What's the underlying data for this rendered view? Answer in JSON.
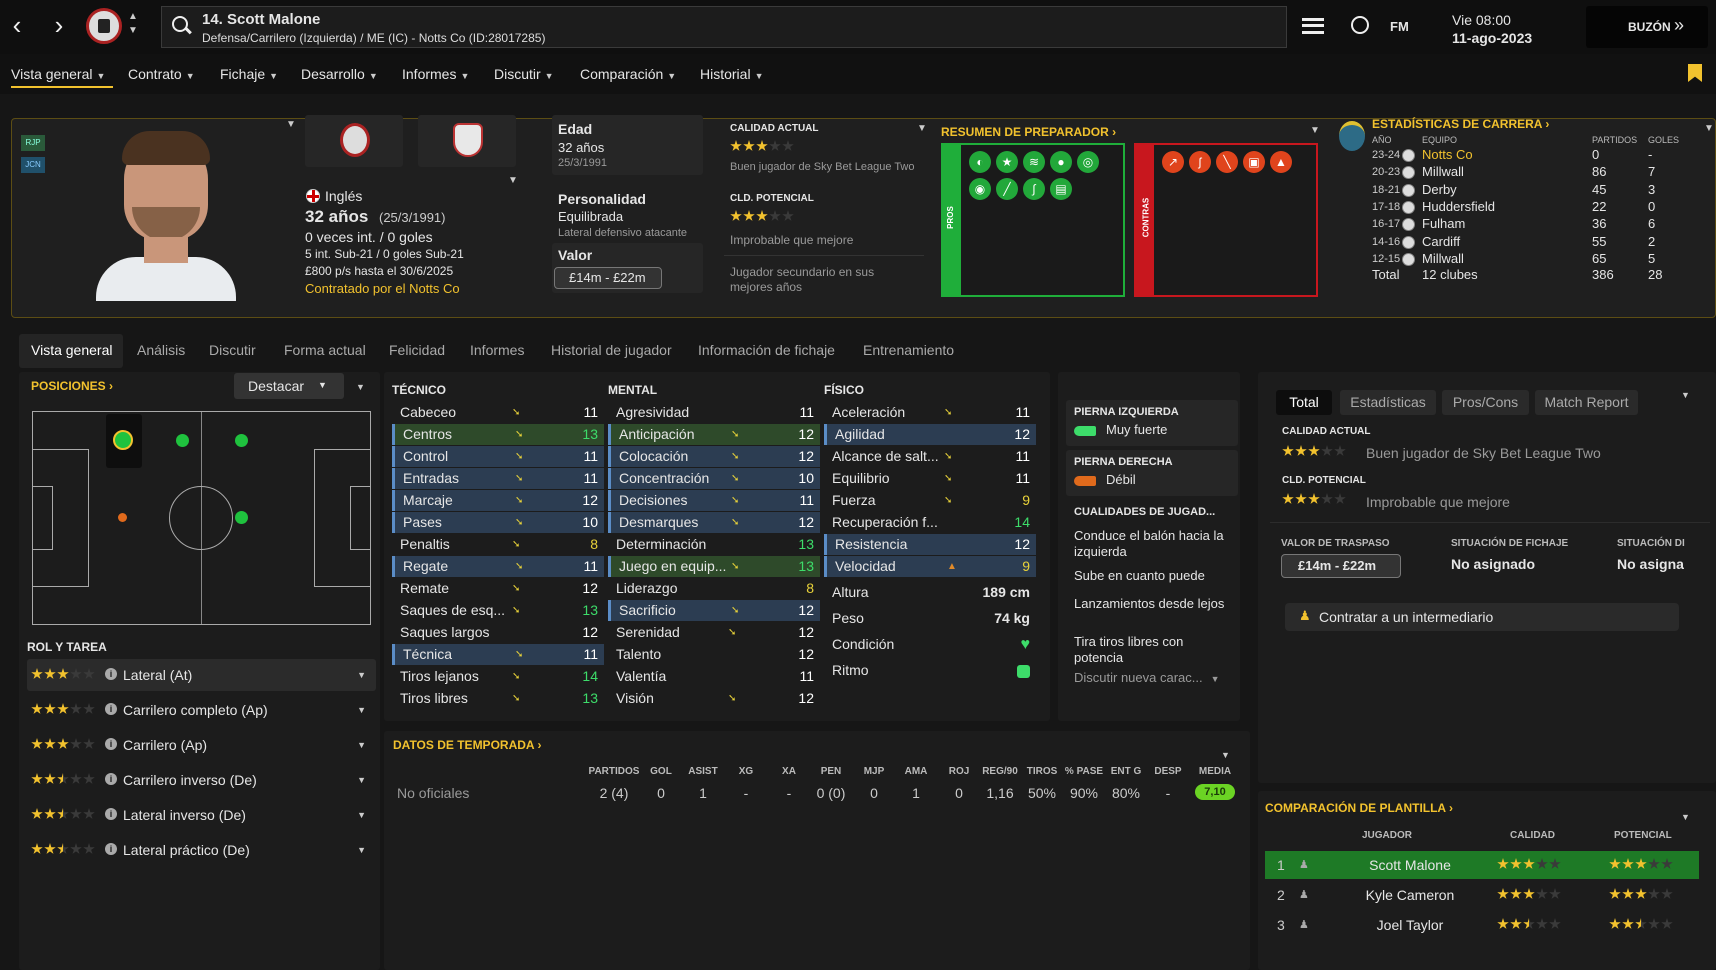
{
  "topbar": {
    "player_title": "14. Scott Malone",
    "player_subtitle": "Defensa/Carrilero (Izquierda) / ME (IC) - Notts Co (ID:28017285)",
    "fm_label": "FM",
    "date_day": "Vie 08:00",
    "date_full": "11-ago-2023",
    "inbox_label": "BUZÓN"
  },
  "menu": [
    "Vista general",
    "Contrato",
    "Fichaje",
    "Desarrollo",
    "Informes",
    "Discutir",
    "Comparación",
    "Historial"
  ],
  "profile": {
    "badge_rup": "RJP",
    "badge_jcn": "JCN",
    "nationality": "Inglés",
    "age_text": "32 años",
    "birth_text": "(25/3/1991)",
    "caps": "0 veces int. / 0 goles",
    "youth_caps": "5 int. Sub-21 / 0 goles Sub-21",
    "wage": "£800 p/s hasta el 30/6/2025",
    "signed": "Contratado por el Notts Co",
    "age_label": "Edad",
    "age_value": "32 años",
    "age_date": "25/3/1991",
    "personality_label": "Personalidad",
    "personality_value": "Equilibrada",
    "personality_sub": "Lateral defensivo atacante",
    "value_label": "Valor",
    "value_range": "£14m - £22m"
  },
  "ability": {
    "current_label": "CALIDAD ACTUAL",
    "current_stars": 3,
    "current_desc": "Buen jugador de Sky Bet League Two",
    "potential_label": "CLD. POTENCIAL",
    "potential_stars": 3,
    "potential_desc": "Improbable que mejore",
    "extra_desc": "Jugador secundario en sus mejores años"
  },
  "coach_summary": {
    "title": "RESUMEN DE PREPARADOR",
    "pros_label": "PROS",
    "cons_label": "CONTRAS"
  },
  "career": {
    "title": "ESTADÍSTICAS DE CARRERA",
    "col_year": "AÑO",
    "col_team": "EQUIPO",
    "col_apps": "PARTIDOS",
    "col_goals": "GOLES",
    "rows": [
      {
        "year": "23-24",
        "team": "Notts Co",
        "apps": "0",
        "goals": "-"
      },
      {
        "year": "20-23",
        "team": "Millwall",
        "apps": "86",
        "goals": "7"
      },
      {
        "year": "18-21",
        "team": "Derby",
        "apps": "45",
        "goals": "3"
      },
      {
        "year": "17-18",
        "team": "Huddersfield",
        "apps": "22",
        "goals": "0"
      },
      {
        "year": "16-17",
        "team": "Fulham",
        "apps": "36",
        "goals": "6"
      },
      {
        "year": "14-16",
        "team": "Cardiff",
        "apps": "55",
        "goals": "2"
      },
      {
        "year": "12-15",
        "team": "Millwall",
        "apps": "65",
        "goals": "5"
      }
    ],
    "total_label": "Total",
    "total_team": "12 clubes",
    "total_apps": "386",
    "total_goals": "28"
  },
  "subtabs": [
    "Vista general",
    "Análisis",
    "Discutir",
    "Forma actual",
    "Felicidad",
    "Informes",
    "Historial de jugador",
    "Información de fichaje",
    "Entrenamiento"
  ],
  "positions": {
    "title": "POSICIONES",
    "highlight_label": "Destacar",
    "role_title": "ROL Y TAREA",
    "roles": [
      {
        "name": "Lateral (At)",
        "stars": 3
      },
      {
        "name": "Carrilero completo (Ap)",
        "stars": 3
      },
      {
        "name": "Carrilero (Ap)",
        "stars": 3
      },
      {
        "name": "Carrilero inverso (De)",
        "stars": 2.5
      },
      {
        "name": "Lateral inverso (De)",
        "stars": 2.5
      },
      {
        "name": "Lateral práctico (De)",
        "stars": 2.5
      }
    ]
  },
  "attributes": {
    "tech_title": "TÉCNICO",
    "mental_title": "MENTAL",
    "phys_title": "FÍSICO",
    "technical": [
      {
        "name": "Cabeceo",
        "value": "11",
        "hl": "",
        "arrow": "down"
      },
      {
        "name": "Centros",
        "value": "13",
        "hl": "g",
        "arrow": "down"
      },
      {
        "name": "Control",
        "value": "11",
        "hl": "b",
        "arrow": "down"
      },
      {
        "name": "Entradas",
        "value": "11",
        "hl": "b",
        "arrow": "down"
      },
      {
        "name": "Marcaje",
        "value": "12",
        "hl": "b",
        "arrow": "down"
      },
      {
        "name": "Pases",
        "value": "10",
        "hl": "b",
        "arrow": "down"
      },
      {
        "name": "Penaltis",
        "value": "8",
        "hl": "",
        "arrow": "down"
      },
      {
        "name": "Regate",
        "value": "11",
        "hl": "b",
        "arrow": "down"
      },
      {
        "name": "Remate",
        "value": "12",
        "hl": "",
        "arrow": "down"
      },
      {
        "name": "Saques de esq...",
        "value": "13",
        "hl": "",
        "arrow": "down"
      },
      {
        "name": "Saques largos",
        "value": "12",
        "hl": "",
        "arrow": ""
      },
      {
        "name": "Técnica",
        "value": "11",
        "hl": "b",
        "arrow": "down"
      },
      {
        "name": "Tiros lejanos",
        "value": "14",
        "hl": "",
        "arrow": "down"
      },
      {
        "name": "Tiros libres",
        "value": "13",
        "hl": "",
        "arrow": "down"
      }
    ],
    "mental": [
      {
        "name": "Agresividad",
        "value": "11",
        "hl": "",
        "arrow": ""
      },
      {
        "name": "Anticipación",
        "value": "12",
        "hl": "g",
        "arrow": "down"
      },
      {
        "name": "Colocación",
        "value": "12",
        "hl": "b",
        "arrow": "down"
      },
      {
        "name": "Concentración",
        "value": "10",
        "hl": "b",
        "arrow": "down"
      },
      {
        "name": "Decisiones",
        "value": "11",
        "hl": "b",
        "arrow": "down"
      },
      {
        "name": "Desmarques",
        "value": "12",
        "hl": "b",
        "arrow": "down"
      },
      {
        "name": "Determinación",
        "value": "13",
        "hl": "",
        "arrow": ""
      },
      {
        "name": "Juego en equip...",
        "value": "13",
        "hl": "g",
        "arrow": "down"
      },
      {
        "name": "Liderazgo",
        "value": "8",
        "hl": "",
        "arrow": ""
      },
      {
        "name": "Sacrificio",
        "value": "12",
        "hl": "b",
        "arrow": "down"
      },
      {
        "name": "Serenidad",
        "value": "12",
        "hl": "",
        "arrow": "down"
      },
      {
        "name": "Talento",
        "value": "12",
        "hl": "",
        "arrow": ""
      },
      {
        "name": "Valentía",
        "value": "11",
        "hl": "",
        "arrow": ""
      },
      {
        "name": "Visión",
        "value": "12",
        "hl": "",
        "arrow": "down"
      }
    ],
    "physical": [
      {
        "name": "Aceleración",
        "value": "11",
        "hl": "",
        "arrow": "down"
      },
      {
        "name": "Agilidad",
        "value": "12",
        "hl": "b",
        "arrow": ""
      },
      {
        "name": "Alcance de salt...",
        "value": "11",
        "hl": "",
        "arrow": "down"
      },
      {
        "name": "Equilibrio",
        "value": "11",
        "hl": "",
        "arrow": "down"
      },
      {
        "name": "Fuerza",
        "value": "9",
        "hl": "",
        "arrow": "down"
      },
      {
        "name": "Recuperación f...",
        "value": "14",
        "hl": "",
        "arrow": ""
      },
      {
        "name": "Resistencia",
        "value": "12",
        "hl": "b",
        "arrow": ""
      },
      {
        "name": "Velocidad",
        "value": "9",
        "hl": "b",
        "arrow": "up"
      }
    ],
    "height_label": "Altura",
    "height_value": "189 cm",
    "weight_label": "Peso",
    "weight_value": "74 kg",
    "condition_label": "Condición",
    "rhythm_label": "Ritmo"
  },
  "feet": {
    "left_title": "PIERNA IZQUIERDA",
    "left_value": "Muy fuerte",
    "right_title": "PIERNA DERECHA",
    "right_value": "Débil",
    "traits_title": "CUALIDADES DE JUGAD...",
    "traits": [
      "Conduce el balón hacia la izquierda",
      "Sube en cuanto puede",
      "Lanzamientos desde lejos",
      "Tira tiros libres con potencia"
    ],
    "discuss": "Discutir nueva carac..."
  },
  "season": {
    "title": "DATOS DE TEMPORADA",
    "headers": [
      "PARTIDOS",
      "GOL",
      "ASIST",
      "XG",
      "XA",
      "PEN",
      "MJP",
      "AMA",
      "ROJ",
      "REG/90",
      "TIROS",
      "% PASE",
      "ENT G",
      "DESP",
      "MEDIA"
    ],
    "row_label": "No oficiales",
    "values": [
      "2 (4)",
      "0",
      "1",
      "-",
      "-",
      "0 (0)",
      "0",
      "1",
      "0",
      "1,16",
      "50%",
      "90%",
      "80%",
      "-",
      "7,10"
    ]
  },
  "right_panel": {
    "tabs": [
      "Total",
      "Estadísticas",
      "Pros/Cons",
      "Match Report"
    ],
    "current_label": "CALIDAD ACTUAL",
    "current_desc": "Buen jugador de Sky Bet League Two",
    "potential_label": "CLD. POTENCIAL",
    "potential_desc": "Improbable que mejore",
    "transfer_label": "VALOR DE TRASPASO",
    "transfer_value": "£14m - £22m",
    "status_label": "SITUACIÓN DE FICHAJE",
    "status_value": "No asignado",
    "status2_label": "SITUACIÓN DI",
    "status2_value": "No asigna",
    "agent_button": "Contratar a un intermediario"
  },
  "squad": {
    "title": "COMPARACIÓN DE PLANTILLA",
    "col_player": "JUGADOR",
    "col_quality": "CALIDAD",
    "col_potential": "POTENCIAL",
    "rows": [
      {
        "rank": "1",
        "name": "Scott Malone",
        "quality": 3,
        "potential": 3
      },
      {
        "rank": "2",
        "name": "Kyle Cameron",
        "quality": 3,
        "potential": 3
      },
      {
        "rank": "3",
        "name": "Joel Taylor",
        "quality": 2.5,
        "potential": 2.5
      }
    ]
  },
  "colors": {
    "accent": "#f2c22e",
    "pros": "#1fae3a",
    "cons": "#c8171e",
    "highlight": "#2c3d52"
  }
}
